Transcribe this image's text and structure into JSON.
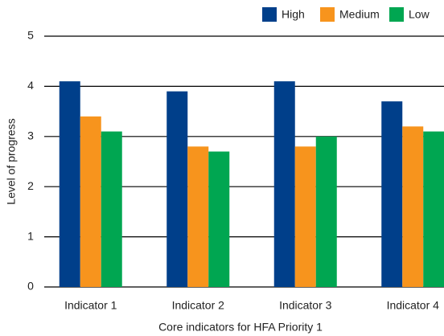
{
  "chart_data": {
    "type": "bar",
    "categories": [
      "Indicator 1",
      "Indicator 2",
      "Indicator 3",
      "Indicator 4"
    ],
    "series": [
      {
        "name": "High",
        "color": "#003f8a",
        "values": [
          4.1,
          3.9,
          4.1,
          3.7
        ]
      },
      {
        "name": "Medium",
        "color": "#f7941d",
        "values": [
          3.4,
          2.8,
          2.8,
          3.2
        ]
      },
      {
        "name": "Low",
        "color": "#00a651",
        "values": [
          3.1,
          2.7,
          3.0,
          3.1
        ]
      }
    ],
    "ylabel": "Level of progress",
    "xlabel": "Core indicators for HFA Priority 1",
    "ylim": [
      0,
      5
    ],
    "yticks": [
      0,
      1,
      2,
      3,
      4,
      5
    ],
    "grid": true,
    "legend": "top-right"
  }
}
